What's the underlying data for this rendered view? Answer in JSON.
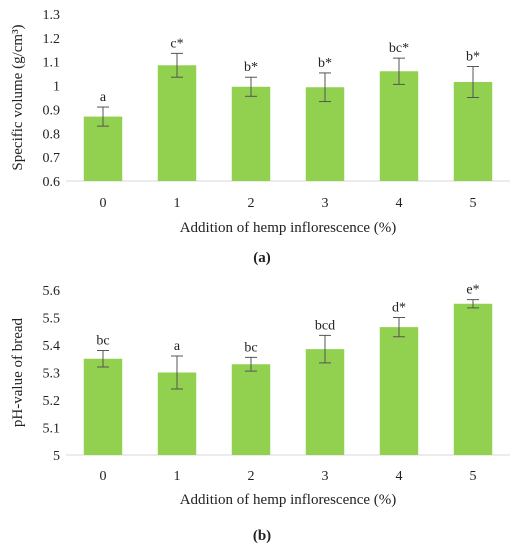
{
  "chart_data": [
    {
      "type": "bar",
      "panel_label": "(a)",
      "xlabel": "Addition of hemp inflorescence (%)",
      "ylabel": "Specific volume (g/cm³)",
      "categories": [
        "0",
        "1",
        "2",
        "3",
        "4",
        "5"
      ],
      "values": [
        0.87,
        1.085,
        0.995,
        0.993,
        1.06,
        1.015
      ],
      "error": [
        0.04,
        0.05,
        0.04,
        0.06,
        0.055,
        0.065
      ],
      "letters": [
        "a",
        "c*",
        "b*",
        "b*",
        "bc*",
        "b*"
      ],
      "ylim": [
        0.6,
        1.3
      ],
      "yticks": [
        "0.6",
        "0.7",
        "0.8",
        "0.9",
        "1",
        "1.1",
        "1.2",
        "1.3"
      ],
      "bar_color": "#92d050",
      "grid": false
    },
    {
      "type": "bar",
      "panel_label": "(b)",
      "xlabel": "Addition of hemp inflorescence (%)",
      "ylabel": "pH-value of bread",
      "categories": [
        "0",
        "1",
        "2",
        "3",
        "4",
        "5"
      ],
      "values": [
        5.35,
        5.3,
        5.33,
        5.385,
        5.465,
        5.55
      ],
      "error": [
        0.03,
        0.06,
        0.025,
        0.05,
        0.035,
        0.015
      ],
      "letters": [
        "bc",
        "a",
        "bc",
        "bcd",
        "d*",
        "e*"
      ],
      "ylim": [
        5.0,
        5.6
      ],
      "yticks": [
        "5",
        "5.1",
        "5.2",
        "5.3",
        "5.4",
        "5.5",
        "5.6"
      ],
      "bar_color": "#92d050",
      "grid": false
    }
  ]
}
